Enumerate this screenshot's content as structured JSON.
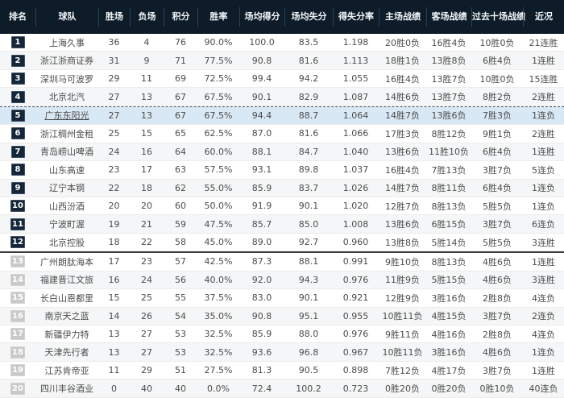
{
  "colors": {
    "header_bg": "#0e1b28",
    "header_text": "#f2f6fa",
    "badge_qualified": "#142638",
    "badge_eliminated": "#c9c9c9",
    "selected_row_bg": "#d9e8f5",
    "stripe_bg": "#f5f6f7",
    "body_text": "#4c4c4c"
  },
  "table": {
    "columns": [
      {
        "key": "rank",
        "label": "排名"
      },
      {
        "key": "team",
        "label": "球队"
      },
      {
        "key": "wins",
        "label": "胜场"
      },
      {
        "key": "losses",
        "label": "负场"
      },
      {
        "key": "points",
        "label": "积分"
      },
      {
        "key": "rate",
        "label": "胜率"
      },
      {
        "key": "ppg",
        "label": "场均得分"
      },
      {
        "key": "papg",
        "label": "场均失分"
      },
      {
        "key": "ratio",
        "label": "得失分率"
      },
      {
        "key": "home",
        "label": "主场战绩"
      },
      {
        "key": "away",
        "label": "客场战绩"
      },
      {
        "key": "last10",
        "label": "过去十场战绩"
      },
      {
        "key": "recent",
        "label": "近况"
      }
    ],
    "separators": [
      {
        "after_row": "4",
        "style": "dashed"
      },
      {
        "after_row": "12",
        "style": "solid"
      }
    ],
    "rows": [
      {
        "rank": "1",
        "team": "上海久事",
        "wins": "36",
        "losses": "4",
        "points": "76",
        "rate": "90.0%",
        "ppg": "100.0",
        "papg": "83.5",
        "ratio": "1.198",
        "home": "20胜0负",
        "away": "16胜4负",
        "last10": "10胜0负",
        "recent": "21连胜",
        "qualified": true,
        "selected": false
      },
      {
        "rank": "2",
        "team": "浙江浙商证券",
        "wins": "31",
        "losses": "9",
        "points": "71",
        "rate": "77.5%",
        "ppg": "90.8",
        "papg": "81.6",
        "ratio": "1.113",
        "home": "18胜1负",
        "away": "13胜8负",
        "last10": "6胜4负",
        "recent": "1连胜",
        "qualified": true,
        "selected": false
      },
      {
        "rank": "3",
        "team": "深圳马可波罗",
        "wins": "29",
        "losses": "11",
        "points": "69",
        "rate": "72.5%",
        "ppg": "99.4",
        "papg": "94.2",
        "ratio": "1.055",
        "home": "16胜4负",
        "away": "13胜7负",
        "last10": "10胜0负",
        "recent": "15连胜",
        "qualified": true,
        "selected": false
      },
      {
        "rank": "4",
        "team": "北京北汽",
        "wins": "27",
        "losses": "13",
        "points": "67",
        "rate": "67.5%",
        "ppg": "90.1",
        "papg": "82.9",
        "ratio": "1.087",
        "home": "14胜6负",
        "away": "13胜7负",
        "last10": "8胜2负",
        "recent": "2连胜",
        "qualified": true,
        "selected": false
      },
      {
        "rank": "5",
        "team": "广东东阳光",
        "wins": "27",
        "losses": "13",
        "points": "67",
        "rate": "67.5%",
        "ppg": "94.4",
        "papg": "88.7",
        "ratio": "1.064",
        "home": "14胜7负",
        "away": "13胜6负",
        "last10": "7胜3负",
        "recent": "1连负",
        "qualified": true,
        "selected": true
      },
      {
        "rank": "6",
        "team": "浙江稠州金租",
        "wins": "25",
        "losses": "15",
        "points": "65",
        "rate": "62.5%",
        "ppg": "87.0",
        "papg": "81.6",
        "ratio": "1.066",
        "home": "17胜3负",
        "away": "8胜12负",
        "last10": "9胜1负",
        "recent": "2连胜",
        "qualified": true,
        "selected": false
      },
      {
        "rank": "7",
        "team": "青岛崂山啤酒",
        "wins": "24",
        "losses": "16",
        "points": "64",
        "rate": "60.0%",
        "ppg": "88.1",
        "papg": "84.7",
        "ratio": "1.040",
        "home": "13胜6负",
        "away": "11胜10负",
        "last10": "6胜4负",
        "recent": "1连胜",
        "qualified": true,
        "selected": false
      },
      {
        "rank": "8",
        "team": "山东高速",
        "wins": "23",
        "losses": "17",
        "points": "63",
        "rate": "57.5%",
        "ppg": "93.1",
        "papg": "89.8",
        "ratio": "1.037",
        "home": "16胜4负",
        "away": "7胜13负",
        "last10": "3胜7负",
        "recent": "5连负",
        "qualified": true,
        "selected": false
      },
      {
        "rank": "9",
        "team": "辽宁本钢",
        "wins": "22",
        "losses": "18",
        "points": "62",
        "rate": "55.0%",
        "ppg": "85.9",
        "papg": "83.7",
        "ratio": "1.026",
        "home": "14胜7负",
        "away": "8胜11负",
        "last10": "6胜4负",
        "recent": "1连负",
        "qualified": true,
        "selected": false
      },
      {
        "rank": "10",
        "team": "山西汾酒",
        "wins": "20",
        "losses": "20",
        "points": "60",
        "rate": "50.0%",
        "ppg": "91.9",
        "papg": "90.1",
        "ratio": "1.020",
        "home": "12胜7负",
        "away": "8胜13负",
        "last10": "5胜5负",
        "recent": "1连负",
        "qualified": true,
        "selected": false
      },
      {
        "rank": "11",
        "team": "宁波町渥",
        "wins": "19",
        "losses": "21",
        "points": "59",
        "rate": "47.5%",
        "ppg": "85.7",
        "papg": "85.0",
        "ratio": "1.008",
        "home": "13胜6负",
        "away": "6胜15负",
        "last10": "3胜7负",
        "recent": "6连负",
        "qualified": true,
        "selected": false
      },
      {
        "rank": "12",
        "team": "北京控股",
        "wins": "18",
        "losses": "22",
        "points": "58",
        "rate": "45.0%",
        "ppg": "89.0",
        "papg": "92.7",
        "ratio": "0.960",
        "home": "13胜8负",
        "away": "5胜14负",
        "last10": "5胜5负",
        "recent": "3连胜",
        "qualified": true,
        "selected": false
      },
      {
        "rank": "13",
        "team": "广州朗肽海本",
        "wins": "17",
        "losses": "23",
        "points": "57",
        "rate": "42.5%",
        "ppg": "87.3",
        "papg": "88.1",
        "ratio": "0.991",
        "home": "9胜10负",
        "away": "8胜13负",
        "last10": "4胜6负",
        "recent": "1连胜",
        "qualified": false,
        "selected": false
      },
      {
        "rank": "14",
        "team": "福建晋江文旅",
        "wins": "16",
        "losses": "24",
        "points": "56",
        "rate": "40.0%",
        "ppg": "92.0",
        "papg": "94.3",
        "ratio": "0.976",
        "home": "11胜9负",
        "away": "5胜15负",
        "last10": "4胜6负",
        "recent": "3连胜",
        "qualified": false,
        "selected": false
      },
      {
        "rank": "15",
        "team": "长白山恩都里",
        "wins": "15",
        "losses": "25",
        "points": "55",
        "rate": "37.5%",
        "ppg": "83.0",
        "papg": "90.1",
        "ratio": "0.921",
        "home": "12胜9负",
        "away": "3胜16负",
        "last10": "2胜8负",
        "recent": "4连负",
        "qualified": false,
        "selected": false
      },
      {
        "rank": "16",
        "team": "南京天之蓝",
        "wins": "14",
        "losses": "26",
        "points": "54",
        "rate": "35.0%",
        "ppg": "90.8",
        "papg": "95.1",
        "ratio": "0.955",
        "home": "10胜11负",
        "away": "4胜15负",
        "last10": "3胜7负",
        "recent": "2连负",
        "qualified": false,
        "selected": false
      },
      {
        "rank": "17",
        "team": "新疆伊力特",
        "wins": "13",
        "losses": "27",
        "points": "53",
        "rate": "32.5%",
        "ppg": "85.9",
        "papg": "88.0",
        "ratio": "0.976",
        "home": "9胜11负",
        "away": "4胜16负",
        "last10": "2胜8负",
        "recent": "4连负",
        "qualified": false,
        "selected": false
      },
      {
        "rank": "18",
        "team": "天津先行者",
        "wins": "13",
        "losses": "27",
        "points": "53",
        "rate": "32.5%",
        "ppg": "93.6",
        "papg": "96.8",
        "ratio": "0.967",
        "home": "10胜11负",
        "away": "3胜16负",
        "last10": "4胜6负",
        "recent": "1连负",
        "qualified": false,
        "selected": false
      },
      {
        "rank": "19",
        "team": "江苏肯帝亚",
        "wins": "11",
        "losses": "29",
        "points": "51",
        "rate": "27.5%",
        "ppg": "81.3",
        "papg": "90.5",
        "ratio": "0.898",
        "home": "7胜12负",
        "away": "4胜17负",
        "last10": "3胜7负",
        "recent": "1连胜",
        "qualified": false,
        "selected": false
      },
      {
        "rank": "20",
        "team": "四川丰谷酒业",
        "wins": "0",
        "losses": "40",
        "points": "40",
        "rate": "0.0%",
        "ppg": "72.4",
        "papg": "100.2",
        "ratio": "0.723",
        "home": "0胜20负",
        "away": "0胜20负",
        "last10": "0胜10负",
        "recent": "40连负",
        "qualified": false,
        "selected": false
      }
    ]
  }
}
